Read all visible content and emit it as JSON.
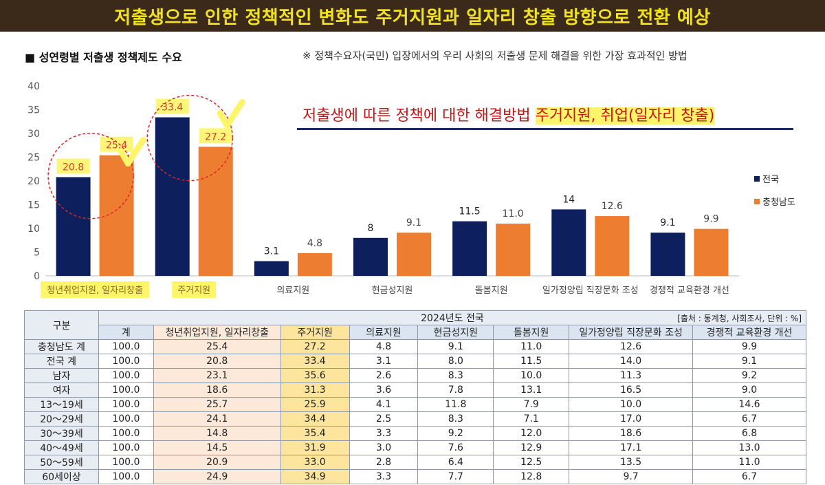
{
  "banner": {
    "title": "저출생으로 인한 정책적인 변화도 주거지원과 일자리 창출 방향으로 전환 예상"
  },
  "chart_title": "■ 성연령별 저출생 정책제도 수요",
  "note": "※ 정책수요자(국민) 입장에서의 우리 사회의 저출생 문제 해결을 위한 가장 효과적인 방법",
  "callout": {
    "text": "저출생에 따른 정책에 대한 해결방법 ",
    "highlight": "주거지원, 취업(일자리 창출)"
  },
  "colors": {
    "national": "#0d1f5c",
    "chungnam": "#ed7d31",
    "banner_bg": "#3b2a1a",
    "banner_text": "#f2e21f"
  },
  "chart_data": {
    "type": "bar",
    "categories": [
      "청년취업지원, 일자리창출",
      "주거지원",
      "의료지원",
      "현금성지원",
      "돌봄지원",
      "일가정양립 직장문화 조성",
      "경쟁적 교육환경 개선"
    ],
    "series": [
      {
        "name": "전국",
        "values": [
          20.8,
          33.4,
          3.1,
          8,
          11.5,
          14,
          9.1
        ],
        "labels": [
          "20.8",
          "33.4",
          "3.1",
          "8",
          "11.5",
          "14",
          "9.1"
        ]
      },
      {
        "name": "충청남도",
        "values": [
          25.4,
          27.2,
          4.8,
          9.1,
          11.0,
          12.6,
          9.9
        ],
        "labels": [
          "25.4",
          "27.2",
          "4.8",
          "9.1",
          "11.0",
          "12.6",
          "9.9"
        ]
      }
    ],
    "ylim": [
      0,
      40
    ],
    "yticks": [
      "0",
      "5",
      "10",
      "15",
      "20",
      "25",
      "30",
      "35",
      "40"
    ],
    "legend": "right",
    "highlighted_categories": [
      0,
      1
    ]
  },
  "table": {
    "corner": "구분",
    "group_header": "2024년도 전국",
    "source": "[출처 : 통계청, 사회조사, 단위 : %]",
    "columns": [
      "계",
      "청년취업지원, 일자리창출",
      "주거지원",
      "의료지원",
      "현금성지원",
      "돌봄지원",
      "일가정양립 직장문화 조성",
      "경쟁적 교육환경 개선"
    ],
    "rows": [
      {
        "label": "충청남도 계",
        "cells": [
          "100.0",
          "25.4",
          "27.2",
          "4.8",
          "9.1",
          "11.0",
          "12.6",
          "9.9"
        ]
      },
      {
        "label": "전국 계",
        "cells": [
          "100.0",
          "20.8",
          "33.4",
          "3.1",
          "8.0",
          "11.5",
          "14.0",
          "9.1"
        ]
      },
      {
        "label": "남자",
        "cells": [
          "100.0",
          "23.1",
          "35.6",
          "2.6",
          "8.3",
          "10.0",
          "11.3",
          "9.2"
        ]
      },
      {
        "label": "여자",
        "cells": [
          "100.0",
          "18.6",
          "31.3",
          "3.6",
          "7.8",
          "13.1",
          "16.5",
          "9.0"
        ]
      },
      {
        "label": "13～19세",
        "cells": [
          "100.0",
          "25.7",
          "25.9",
          "4.1",
          "11.8",
          "7.9",
          "10.0",
          "14.6"
        ]
      },
      {
        "label": "20～29세",
        "cells": [
          "100.0",
          "24.1",
          "34.4",
          "2.5",
          "8.3",
          "7.1",
          "17.0",
          "6.7"
        ]
      },
      {
        "label": "30～39세",
        "cells": [
          "100.0",
          "14.8",
          "35.4",
          "3.3",
          "9.2",
          "12.0",
          "18.6",
          "6.8"
        ]
      },
      {
        "label": "40～49세",
        "cells": [
          "100.0",
          "14.5",
          "31.9",
          "3.0",
          "7.6",
          "12.9",
          "17.1",
          "13.0"
        ]
      },
      {
        "label": "50～59세",
        "cells": [
          "100.0",
          "20.9",
          "33.0",
          "2.8",
          "6.4",
          "12.5",
          "13.5",
          "11.0"
        ]
      },
      {
        "label": "60세이상",
        "cells": [
          "100.0",
          "24.9",
          "34.9",
          "3.3",
          "7.7",
          "12.8",
          "9.7",
          "6.7"
        ]
      }
    ]
  }
}
